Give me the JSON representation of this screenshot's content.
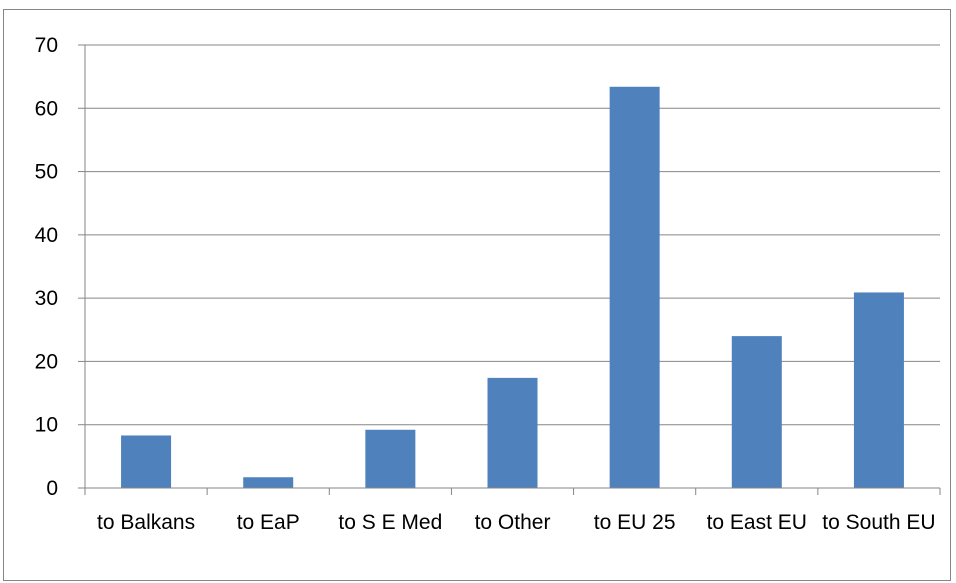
{
  "chart_data": {
    "type": "bar",
    "categories": [
      "to Balkans",
      "to EaP",
      "to S E Med",
      "to Other",
      "to EU 25",
      "to East EU",
      "to South EU"
    ],
    "values": [
      8.3,
      1.7,
      9.2,
      17.4,
      63.4,
      24.0,
      30.9
    ],
    "ylim": [
      0,
      70
    ],
    "yticks": [
      0,
      10,
      20,
      30,
      40,
      50,
      60,
      70
    ],
    "ytick_labels": [
      "0",
      "10",
      "20",
      "30",
      "40",
      "50",
      "60",
      "70"
    ],
    "title": "",
    "xlabel": "",
    "ylabel": "",
    "grid": true,
    "legend": "none",
    "bar_color": "#4f81bd",
    "grid_color": "#868686"
  }
}
